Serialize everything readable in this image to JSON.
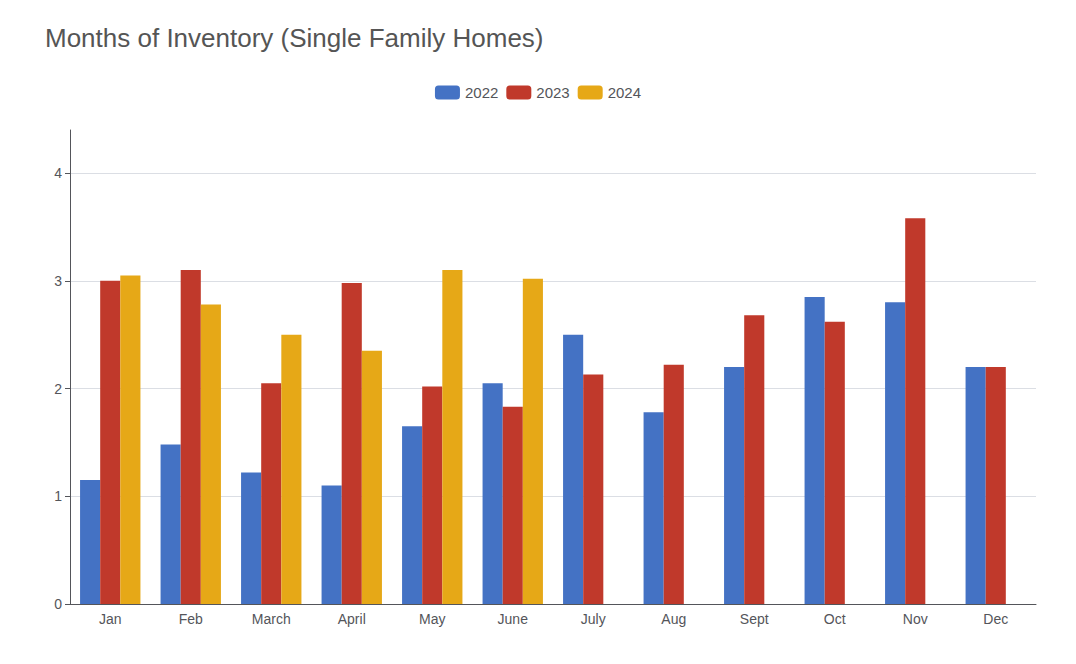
{
  "chart_data": {
    "type": "bar",
    "title": "Months of Inventory (Single Family Homes)",
    "categories": [
      "Jan",
      "Feb",
      "March",
      "April",
      "May",
      "June",
      "July",
      "Aug",
      "Sept",
      "Oct",
      "Nov",
      "Dec"
    ],
    "series": [
      {
        "name": "2022",
        "color": "#4472C4",
        "values": [
          1.15,
          1.48,
          1.22,
          1.1,
          1.65,
          2.05,
          2.5,
          1.78,
          2.2,
          2.85,
          2.8,
          2.2
        ]
      },
      {
        "name": "2023",
        "color": "#C0392B",
        "values": [
          3.0,
          3.1,
          2.05,
          2.98,
          2.02,
          1.83,
          2.13,
          2.22,
          2.68,
          2.62,
          3.58,
          2.2
        ]
      },
      {
        "name": "2024",
        "color": "#E6A817",
        "values": [
          3.05,
          2.78,
          2.5,
          2.35,
          3.1,
          3.02,
          null,
          null,
          null,
          null,
          null,
          null
        ]
      }
    ],
    "ylim": [
      0,
      4.4
    ],
    "yticks": [
      0,
      1,
      2,
      3,
      4
    ],
    "grid": true,
    "legend": "top"
  }
}
